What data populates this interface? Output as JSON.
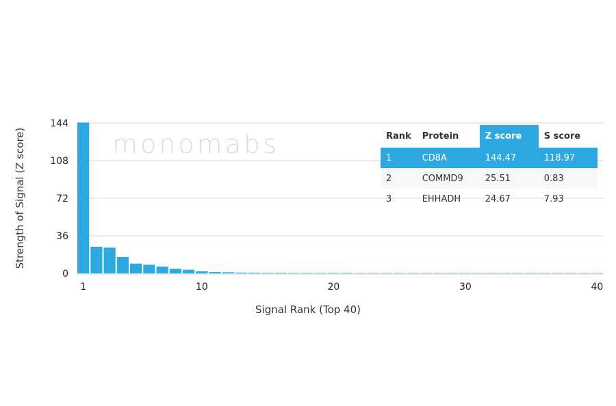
{
  "chart_data": {
    "type": "bar",
    "xlabel": "Signal Rank (Top 40)",
    "ylabel": "Strength of Signal (Z score)",
    "ylim": [
      0,
      144
    ],
    "yticks": [
      0,
      36,
      72,
      108,
      144
    ],
    "xticks": [
      1,
      10,
      20,
      30,
      40
    ],
    "grid": true,
    "bar_color": "#2ea8e0",
    "x": [
      1,
      2,
      3,
      4,
      5,
      6,
      7,
      8,
      9,
      10,
      11,
      12,
      13,
      14,
      15,
      16,
      17,
      18,
      19,
      20,
      21,
      22,
      23,
      24,
      25,
      26,
      27,
      28,
      29,
      30,
      31,
      32,
      33,
      34,
      35,
      36,
      37,
      38,
      39,
      40
    ],
    "values": [
      144.47,
      25.51,
      24.67,
      15.7,
      9.4,
      8.3,
      6.5,
      4.4,
      3.5,
      2.0,
      1.3,
      1.1,
      0.8,
      0.7,
      0.6,
      0.6,
      0.5,
      0.5,
      0.5,
      0.5,
      0.5,
      0.4,
      0.4,
      0.4,
      0.4,
      0.4,
      0.4,
      0.4,
      0.4,
      0.4,
      0.4,
      0.4,
      0.4,
      0.4,
      0.4,
      0.4,
      0.4,
      0.4,
      0.4,
      0.4
    ]
  },
  "watermark": "monomabs",
  "table": {
    "headers": [
      "Rank",
      "Protein",
      "Z score",
      "S score"
    ],
    "rows": [
      [
        "1",
        "CD8A",
        "144.47",
        "118.97"
      ],
      [
        "2",
        "COMMD9",
        "25.51",
        "0.83"
      ],
      [
        "3",
        "EHHADH",
        "24.67",
        "7.93"
      ]
    ]
  }
}
